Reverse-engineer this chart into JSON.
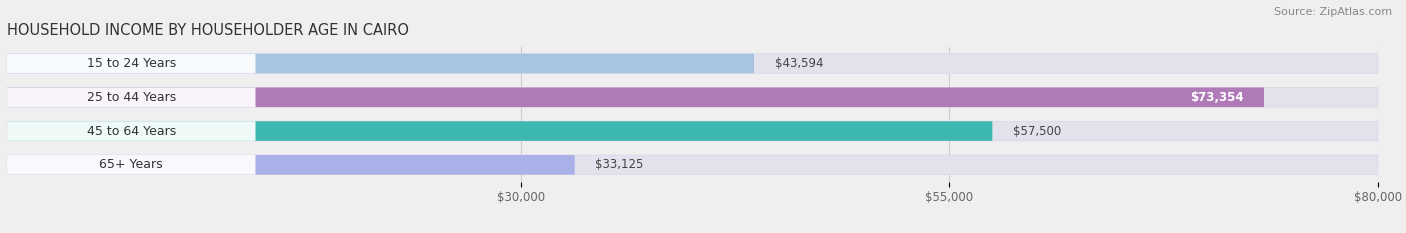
{
  "title": "HOUSEHOLD INCOME BY HOUSEHOLDER AGE IN CAIRO",
  "source": "Source: ZipAtlas.com",
  "categories": [
    "15 to 24 Years",
    "25 to 44 Years",
    "45 to 64 Years",
    "65+ Years"
  ],
  "values": [
    43594,
    73354,
    57500,
    33125
  ],
  "bar_colors": [
    "#a8c4e0",
    "#b07ab8",
    "#3db8b0",
    "#aab0e8"
  ],
  "label_texts": [
    "$43,594",
    "$73,354",
    "$57,500",
    "$33,125"
  ],
  "label_inside": [
    false,
    true,
    false,
    false
  ],
  "x_ticks": [
    30000,
    55000,
    80000
  ],
  "x_tick_labels": [
    "$30,000",
    "$55,000",
    "$80,000"
  ],
  "xlim": [
    0,
    80000
  ],
  "background_color": "#efefef",
  "bar_background_color": "#e2e2ec",
  "title_fontsize": 10.5,
  "source_fontsize": 8,
  "bar_label_fontsize": 8.5,
  "category_fontsize": 9
}
